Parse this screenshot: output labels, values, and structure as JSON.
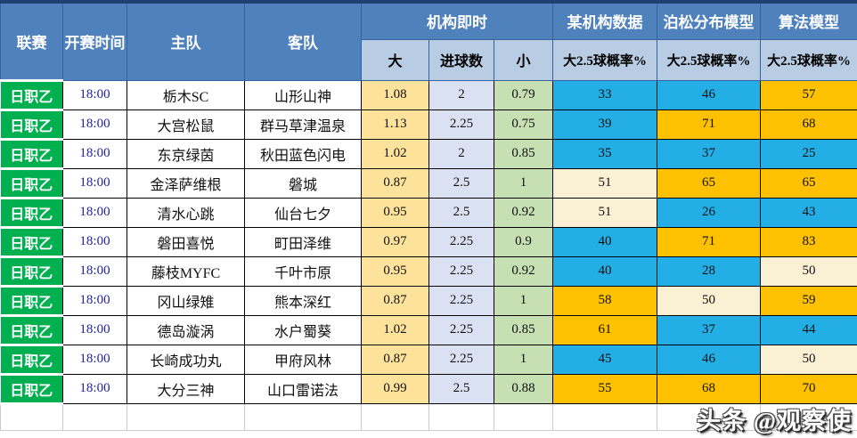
{
  "table": {
    "header": {
      "league": "联赛",
      "time": "开赛时间",
      "home": "主队",
      "away": "客队",
      "group_institution_live": "机构即时",
      "group_agency_data": "某机构数据",
      "group_poisson_model": "泊松分布模型",
      "group_algo_model": "算法模型",
      "sub_over": "大",
      "sub_goals": "进球数",
      "sub_under": "小",
      "sub_prob_agency": "大2.5球概率%",
      "sub_prob_poisson": "大2.5球概率%",
      "sub_prob_algo": "大2.5球概率%"
    },
    "rows": [
      {
        "league": "日职乙",
        "time": "18:00",
        "home": "栃木SC",
        "away": "山形山神",
        "over": "1.08",
        "goals": "2",
        "under": "0.79",
        "agency": "33",
        "poisson": "46",
        "algo": "57",
        "agency_c": "blue",
        "poisson_c": "blue",
        "algo_c": "orange"
      },
      {
        "league": "日职乙",
        "time": "18:00",
        "home": "大宫松鼠",
        "away": "群马草津温泉",
        "over": "1.13",
        "goals": "2.25",
        "under": "0.75",
        "agency": "39",
        "poisson": "71",
        "algo": "68",
        "agency_c": "blue",
        "poisson_c": "orange",
        "algo_c": "orange"
      },
      {
        "league": "日职乙",
        "time": "18:00",
        "home": "东京绿茵",
        "away": "秋田蓝色闪电",
        "over": "1.02",
        "goals": "2",
        "under": "0.85",
        "agency": "35",
        "poisson": "37",
        "algo": "25",
        "agency_c": "blue",
        "poisson_c": "blue",
        "algo_c": "blue"
      },
      {
        "league": "日职乙",
        "time": "18:00",
        "home": "金泽萨维根",
        "away": "磐城",
        "over": "0.87",
        "goals": "2.5",
        "under": "1",
        "agency": "51",
        "poisson": "65",
        "algo": "65",
        "agency_c": "cream",
        "poisson_c": "orange",
        "algo_c": "orange"
      },
      {
        "league": "日职乙",
        "time": "18:00",
        "home": "清水心跳",
        "away": "仙台七夕",
        "over": "0.95",
        "goals": "2.5",
        "under": "0.92",
        "agency": "51",
        "poisson": "26",
        "algo": "43",
        "agency_c": "cream",
        "poisson_c": "blue",
        "algo_c": "blue"
      },
      {
        "league": "日职乙",
        "time": "18:00",
        "home": "磐田喜悦",
        "away": "町田泽维",
        "over": "0.97",
        "goals": "2.25",
        "under": "0.9",
        "agency": "40",
        "poisson": "71",
        "algo": "83",
        "agency_c": "blue",
        "poisson_c": "orange",
        "algo_c": "orange"
      },
      {
        "league": "日职乙",
        "time": "18:00",
        "home": "藤枝MYFC",
        "away": "千叶市原",
        "over": "0.95",
        "goals": "2.25",
        "under": "0.92",
        "agency": "40",
        "poisson": "28",
        "algo": "50",
        "agency_c": "blue",
        "poisson_c": "blue",
        "algo_c": "cream"
      },
      {
        "league": "日职乙",
        "time": "18:00",
        "home": "冈山绿雉",
        "away": "熊本深红",
        "over": "0.87",
        "goals": "2.25",
        "under": "1",
        "agency": "58",
        "poisson": "50",
        "algo": "59",
        "agency_c": "orange",
        "poisson_c": "cream",
        "algo_c": "orange"
      },
      {
        "league": "日职乙",
        "time": "18:00",
        "home": "德岛漩涡",
        "away": "水户蜀葵",
        "over": "1.02",
        "goals": "2.25",
        "under": "0.85",
        "agency": "61",
        "poisson": "37",
        "algo": "44",
        "agency_c": "orange",
        "poisson_c": "blue",
        "algo_c": "blue"
      },
      {
        "league": "日职乙",
        "time": "18:00",
        "home": "长崎成功丸",
        "away": "甲府风林",
        "over": "0.87",
        "goals": "2.25",
        "under": "1",
        "agency": "45",
        "poisson": "46",
        "algo": "50",
        "agency_c": "blue",
        "poisson_c": "blue",
        "algo_c": "cream"
      },
      {
        "league": "日职乙",
        "time": "18:00",
        "home": "大分三神",
        "away": "山口雷诺法",
        "over": "0.99",
        "goals": "2.5",
        "under": "0.88",
        "agency": "55",
        "poisson": "68",
        "algo": "70",
        "agency_c": "orange",
        "poisson_c": "orange",
        "algo_c": "orange"
      }
    ]
  },
  "watermark": "头条 @观察使",
  "colors": {
    "header_blue": "#4f81bd",
    "subheader_blue": "#b8cce4",
    "league_green": "#00b050",
    "over_yellow": "#fde29b",
    "goals_lavender": "#d9e1f2",
    "under_green": "#c6e0b4",
    "prob_blue": "#24aee6",
    "prob_orange": "#fdc101",
    "prob_cream": "#faf0d4",
    "time_text": "#22229e"
  }
}
